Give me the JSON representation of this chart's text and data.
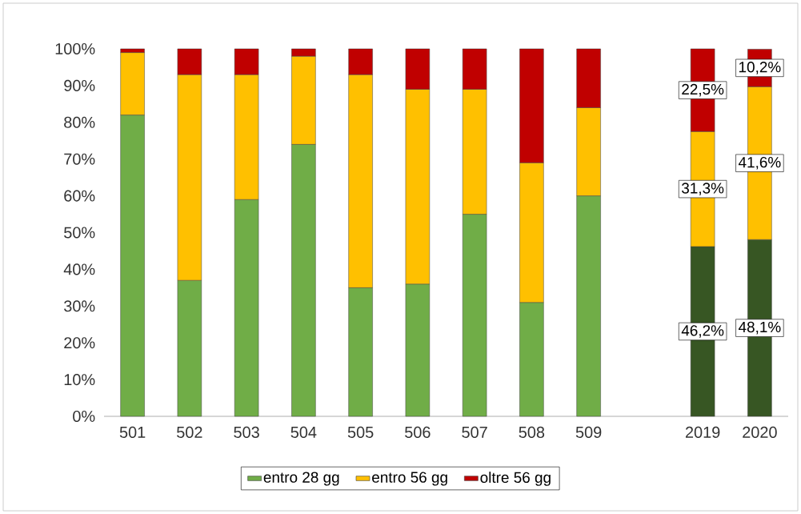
{
  "chart_data": {
    "type": "bar",
    "stacked": true,
    "legend": "bottom",
    "categories": [
      "501",
      "502",
      "503",
      "504",
      "505",
      "506",
      "507",
      "508",
      "509",
      null,
      "2019",
      "2020"
    ],
    "ylim": [
      0,
      100
    ],
    "yticks": [
      {
        "value": 0,
        "label": "0%"
      },
      {
        "value": 10,
        "label": "10%"
      },
      {
        "value": 20,
        "label": "20%"
      },
      {
        "value": 30,
        "label": "30%"
      },
      {
        "value": 40,
        "label": "40%"
      },
      {
        "value": 50,
        "label": "50%"
      },
      {
        "value": 60,
        "label": "60%"
      },
      {
        "value": 70,
        "label": "70%"
      },
      {
        "value": 80,
        "label": "80%"
      },
      {
        "value": 90,
        "label": "90%"
      },
      {
        "value": 100,
        "label": "100%"
      }
    ],
    "series": [
      {
        "name": "entro 28 gg",
        "color": "#70ad47",
        "colors": [
          "#70ad47",
          "#70ad47",
          "#70ad47",
          "#70ad47",
          "#70ad47",
          "#70ad47",
          "#70ad47",
          "#70ad47",
          "#70ad47",
          null,
          "#375623",
          "#375623"
        ],
        "values": [
          82,
          37,
          59,
          74,
          35,
          36,
          55,
          31,
          60,
          null,
          46.2,
          48.1
        ],
        "value_labels": [
          null,
          null,
          null,
          null,
          null,
          null,
          null,
          null,
          null,
          null,
          "46,2%",
          "48,1%"
        ]
      },
      {
        "name": "entro 56 gg",
        "color": "#ffc000",
        "values": [
          17,
          56,
          34,
          24,
          58,
          53,
          34,
          38,
          24,
          null,
          31.3,
          41.6
        ],
        "value_labels": [
          null,
          null,
          null,
          null,
          null,
          null,
          null,
          null,
          null,
          null,
          "31,3%",
          "41,6%"
        ]
      },
      {
        "name": "oltre 56 gg",
        "color": "#c00000",
        "values": [
          1,
          7,
          7,
          2,
          7,
          11,
          11,
          31,
          16,
          null,
          22.5,
          10.2
        ],
        "value_labels": [
          null,
          null,
          null,
          null,
          null,
          null,
          null,
          null,
          null,
          null,
          "22,5%",
          "10,2%"
        ]
      }
    ]
  }
}
